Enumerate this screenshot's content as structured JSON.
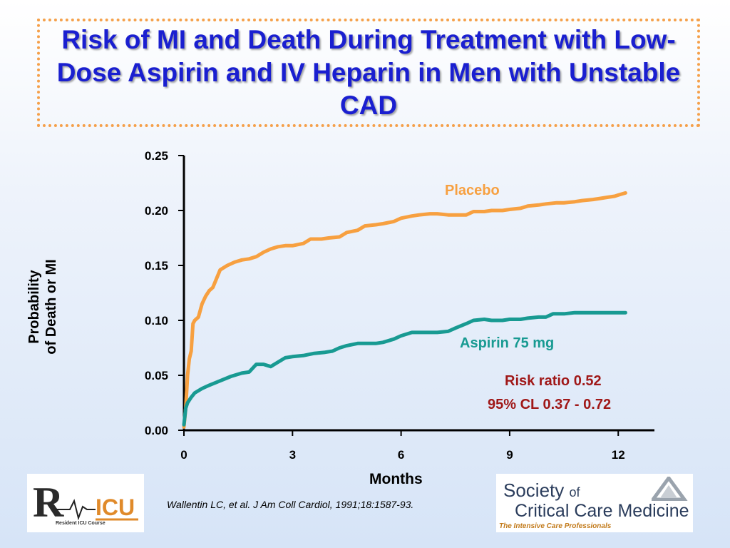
{
  "slide": {
    "title": "Risk of MI and Death During Treatment with Low-Dose Aspirin and IV Heparin in Men with Unstable CAD",
    "citation": "Wallentin LC, et al. J Am Coll Cardiol, 1991;18:1587-93.",
    "annotations": {
      "risk_ratio": "Risk ratio 0.52",
      "confidence": "95% CL 0.37 - 0.72"
    },
    "logos": {
      "left_caption": "Resident ICU Course",
      "right_line1": "Society",
      "right_of": "of",
      "right_line2": "Critical Care Medicine",
      "right_tagline": "The Intensive Care Professionals"
    }
  },
  "colors": {
    "title": "#1a1fd0",
    "placebo": "#f7a040",
    "aspirin": "#189a92",
    "annotation": "#a01818",
    "border": "#f5a04a"
  },
  "chart_data": {
    "type": "line",
    "xlabel": "Months",
    "ylabel_line1": "Probability",
    "ylabel_line2": "of Death or MI",
    "xlim": [
      0,
      13
    ],
    "ylim": [
      0,
      0.25
    ],
    "x_ticks": [
      "0",
      "3",
      "6",
      "9",
      "12"
    ],
    "y_ticks": [
      "0.00",
      "0.05",
      "0.10",
      "0.15",
      "0.20",
      "0.25"
    ],
    "grid": false,
    "series": [
      {
        "name": "Placebo",
        "label": "Placebo",
        "color": "#f7a040",
        "x": [
          0,
          0.05,
          0.1,
          0.15,
          0.2,
          0.25,
          0.3,
          0.4,
          0.5,
          0.6,
          0.7,
          0.8,
          0.9,
          1.0,
          1.1,
          1.2,
          1.4,
          1.6,
          1.8,
          2.0,
          2.2,
          2.4,
          2.6,
          2.8,
          3.0,
          3.3,
          3.5,
          3.8,
          4.0,
          4.3,
          4.5,
          4.8,
          5.0,
          5.3,
          5.5,
          5.8,
          6.0,
          6.3,
          6.5,
          6.8,
          7.0,
          7.3,
          7.5,
          7.8,
          8.0,
          8.3,
          8.5,
          8.8,
          9.0,
          9.3,
          9.5,
          9.8,
          10.0,
          10.3,
          10.5,
          10.8,
          11.0,
          11.3,
          11.5,
          11.7,
          11.9,
          12.0,
          12.1,
          12.2
        ],
        "y": [
          0.003,
          0.02,
          0.05,
          0.065,
          0.072,
          0.097,
          0.1,
          0.103,
          0.115,
          0.122,
          0.127,
          0.13,
          0.138,
          0.146,
          0.148,
          0.15,
          0.153,
          0.155,
          0.156,
          0.158,
          0.162,
          0.165,
          0.167,
          0.168,
          0.168,
          0.17,
          0.174,
          0.174,
          0.175,
          0.176,
          0.18,
          0.182,
          0.186,
          0.187,
          0.188,
          0.19,
          0.193,
          0.195,
          0.196,
          0.197,
          0.197,
          0.196,
          0.196,
          0.196,
          0.199,
          0.199,
          0.2,
          0.2,
          0.201,
          0.202,
          0.204,
          0.205,
          0.206,
          0.207,
          0.207,
          0.208,
          0.209,
          0.21,
          0.211,
          0.212,
          0.213,
          0.214,
          0.215,
          0.216
        ]
      },
      {
        "name": "Aspirin 75 mg",
        "label": "Aspirin 75 mg",
        "color": "#189a92",
        "x": [
          0,
          0.05,
          0.1,
          0.2,
          0.3,
          0.5,
          0.7,
          1.0,
          1.3,
          1.6,
          1.8,
          2.0,
          2.2,
          2.4,
          2.6,
          2.8,
          3.0,
          3.3,
          3.6,
          3.9,
          4.1,
          4.3,
          4.5,
          4.8,
          5.0,
          5.3,
          5.5,
          5.8,
          6.0,
          6.3,
          6.5,
          6.8,
          7.0,
          7.3,
          7.5,
          7.8,
          8.0,
          8.3,
          8.5,
          8.8,
          9.0,
          9.3,
          9.5,
          9.8,
          10.0,
          10.2,
          10.5,
          10.8,
          11.0,
          11.3,
          11.5,
          11.8,
          12.0,
          12.2
        ],
        "y": [
          0.005,
          0.02,
          0.025,
          0.03,
          0.034,
          0.038,
          0.041,
          0.045,
          0.049,
          0.052,
          0.053,
          0.06,
          0.06,
          0.058,
          0.062,
          0.066,
          0.067,
          0.068,
          0.07,
          0.071,
          0.072,
          0.075,
          0.077,
          0.079,
          0.079,
          0.079,
          0.08,
          0.083,
          0.086,
          0.089,
          0.089,
          0.089,
          0.089,
          0.09,
          0.093,
          0.097,
          0.1,
          0.101,
          0.1,
          0.1,
          0.101,
          0.101,
          0.102,
          0.103,
          0.103,
          0.106,
          0.106,
          0.107,
          0.107,
          0.107,
          0.107,
          0.107,
          0.107,
          0.107
        ]
      }
    ]
  }
}
